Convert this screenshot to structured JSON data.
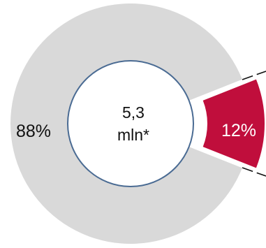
{
  "chart_data": {
    "type": "pie",
    "variant": "donut",
    "center_label": [
      "5,3",
      "mln*"
    ],
    "slices": [
      {
        "label": "88%",
        "value": 88,
        "color": "#d9d9d9",
        "label_color": "#111111",
        "exploded": false
      },
      {
        "label": "12%",
        "value": 12,
        "color": "#c00e3c",
        "label_color": "#ffffff",
        "exploded": true
      }
    ],
    "inner_circle": {
      "fill": "#ffffff",
      "stroke": "#4a6b93"
    },
    "connector_color": "#111111"
  }
}
